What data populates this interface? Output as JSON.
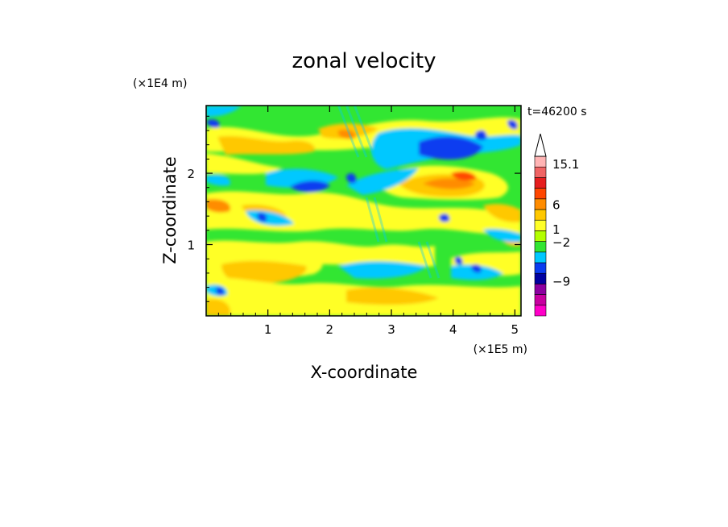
{
  "chart_data": {
    "type": "heatmap",
    "title": "zonal velocity",
    "xlabel": "X-coordinate",
    "ylabel": "Z-coordinate",
    "x_unit": "(×1E5 m)",
    "y_unit": "(×1E4 m)",
    "time_label": "t=46200 s",
    "xlim": [
      0,
      5.1
    ],
    "ylim": [
      0,
      2.95
    ],
    "x_ticks": [
      "1",
      "2",
      "3",
      "4",
      "5"
    ],
    "y_ticks": [
      "1",
      "2"
    ],
    "colorbar": {
      "labels": [
        "15.1",
        "6",
        "1",
        "−2",
        "−9"
      ],
      "colors": [
        "#ff00c8",
        "#c800a0",
        "#8c00a0",
        "#0000a0",
        "#0a3cf0",
        "#00c8ff",
        "#32e632",
        "#b4ff00",
        "#ffff28",
        "#ffc800",
        "#ff8c00",
        "#ff4600",
        "#e61e1e",
        "#f06464",
        "#ffb4b4"
      ]
    },
    "field_description_levels": [
      -9,
      -2,
      1,
      6,
      15.1
    ]
  }
}
